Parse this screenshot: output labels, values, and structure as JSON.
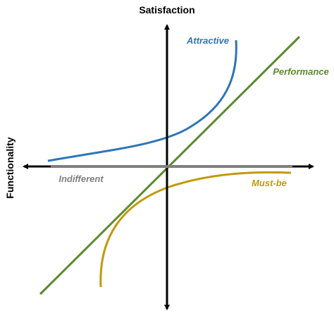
{
  "axes": {
    "vertical_label": "Satisfaction",
    "horizontal_label": "Functionality"
  },
  "curves": [
    {
      "label": "Attractive"
    },
    {
      "label": "Performance"
    },
    {
      "label": "Indifferent"
    },
    {
      "label": "Must-be"
    }
  ]
}
